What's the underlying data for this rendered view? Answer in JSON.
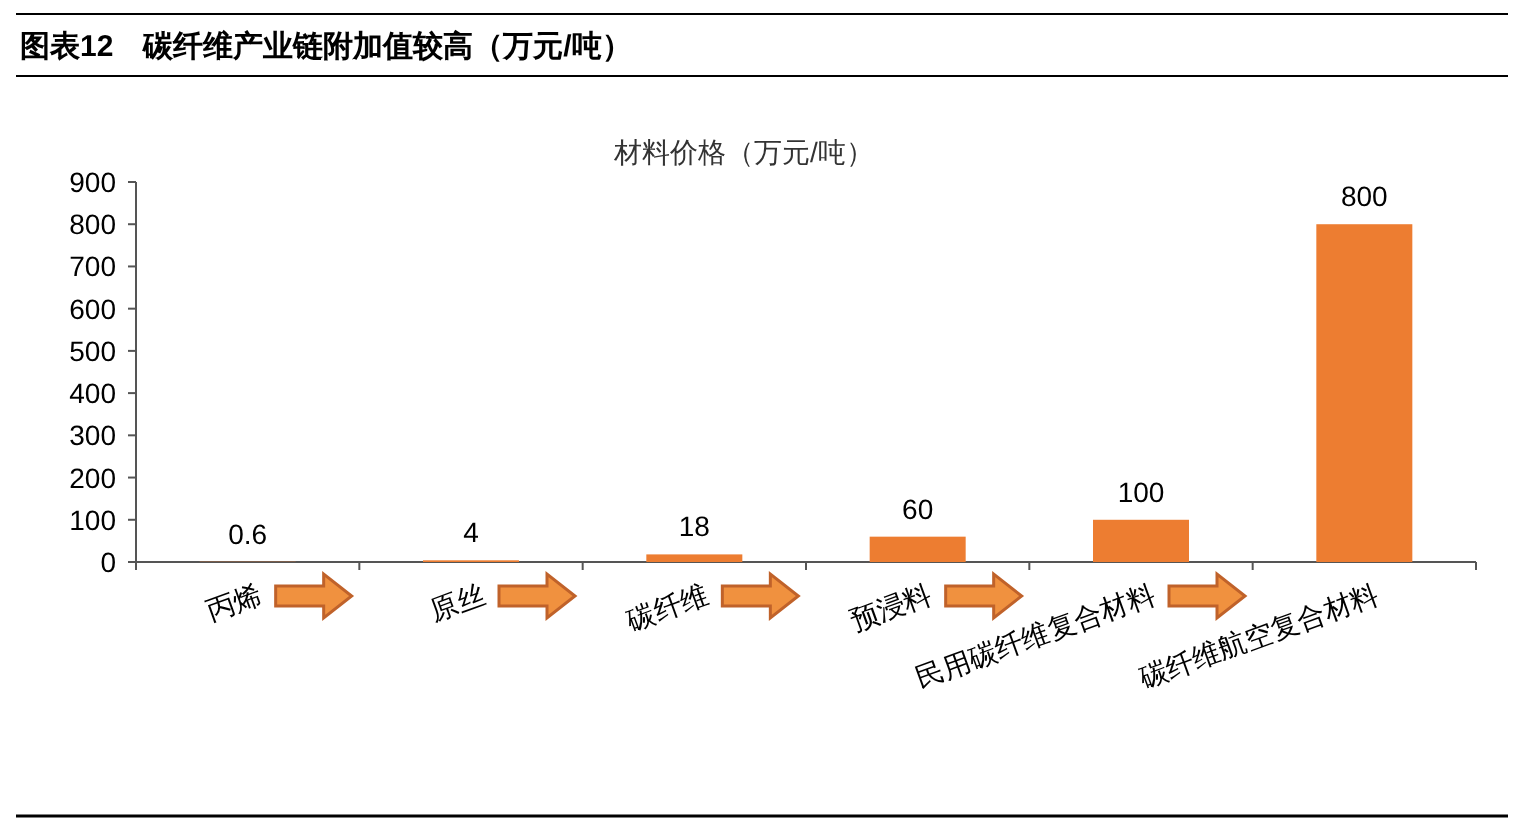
{
  "chart_data": {
    "type": "bar",
    "title": "图表12　碳纤维产业链附加值较高（万元/吨）",
    "subtitle": "材料价格（万元/吨）",
    "categories": [
      "丙烯",
      "原丝",
      "碳纤维",
      "预浸料",
      "民用碳纤维复合材料",
      "碳纤维航空复合材料"
    ],
    "values": [
      0.6,
      4,
      18,
      60,
      100,
      800
    ],
    "color": "#ed7d31",
    "data_labels": true,
    "ylim": [
      0,
      900
    ],
    "yticks": [
      0,
      100,
      200,
      300,
      400,
      500,
      600,
      700,
      800,
      900
    ],
    "grid": false
  }
}
